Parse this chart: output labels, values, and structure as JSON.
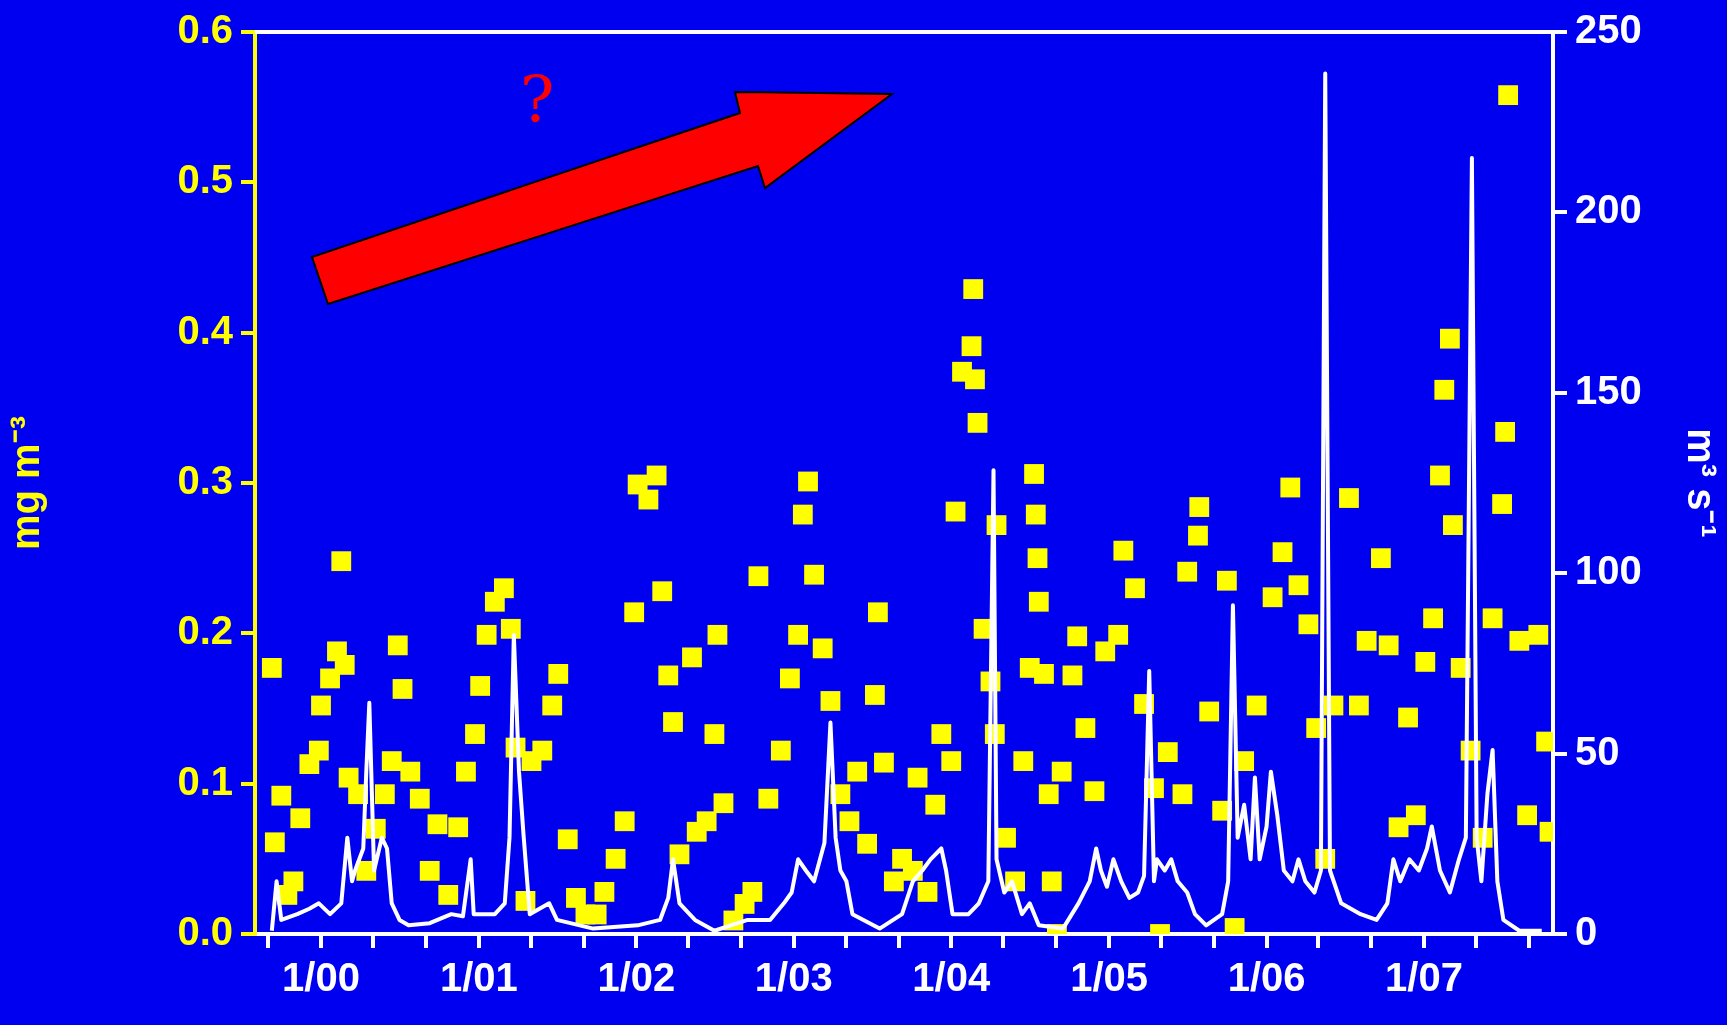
{
  "chart_data": {
    "type": "scatter",
    "ylabel": "mg m⁻³",
    "y2label": "m³ s⁻¹",
    "annotations": [
      "?"
    ],
    "xlim": [
      "1999-08-01",
      "2007-10-27"
    ],
    "xticks": [
      {
        "value": "1999-09",
        "label": null
      },
      {
        "value": "2000-01",
        "label": "1/00"
      },
      {
        "value": "2000-05",
        "label": null
      },
      {
        "value": "2000-09",
        "label": null
      },
      {
        "value": "2001-01",
        "label": "1/01"
      },
      {
        "value": "2001-05",
        "label": null
      },
      {
        "value": "2001-09",
        "label": null
      },
      {
        "value": "2002-01",
        "label": "1/02"
      },
      {
        "value": "2002-05",
        "label": null
      },
      {
        "value": "2002-09",
        "label": null
      },
      {
        "value": "2003-01",
        "label": "1/03"
      },
      {
        "value": "2003-05",
        "label": null
      },
      {
        "value": "2003-09",
        "label": null
      },
      {
        "value": "2004-01",
        "label": "1/04"
      },
      {
        "value": "2004-05",
        "label": null
      },
      {
        "value": "2004-09",
        "label": null
      },
      {
        "value": "2005-01",
        "label": "1/05"
      },
      {
        "value": "2005-05",
        "label": null
      },
      {
        "value": "2005-09",
        "label": null
      },
      {
        "value": "2006-01",
        "label": "1/06"
      },
      {
        "value": "2006-05",
        "label": null
      },
      {
        "value": "2006-09",
        "label": null
      },
      {
        "value": "2007-01",
        "label": "1/07"
      },
      {
        "value": "2007-05",
        "label": null
      },
      {
        "value": "2007-09",
        "label": null
      }
    ],
    "ylim": [
      0,
      0.6
    ],
    "yticks": [
      {
        "value": 0,
        "label": "0.0"
      },
      0.1,
      0.2,
      0.3,
      0.4,
      0.5,
      0.6
    ],
    "y2lim": [
      0,
      250
    ],
    "y2ticks": [
      0,
      50,
      100,
      150,
      200,
      250
    ],
    "series": [
      {
        "color": "#ffff00",
        "marker": "square",
        "x": [
          "1999-09-09",
          "1999-09-16",
          "1999-10-01",
          "1999-10-15",
          "1999-10-29",
          "1999-11-14",
          "1999-12-05",
          "1999-12-27",
          "2000-01-01",
          "2000-01-22",
          "2000-02-07",
          "2000-02-17",
          "2000-02-25",
          "2000-03-05",
          "2000-03-27",
          "2000-04-15",
          "2000-05-07",
          "2000-05-28",
          "2000-06-13",
          "2000-06-27",
          "2000-07-08",
          "2000-07-26",
          "2000-08-17",
          "2000-09-09",
          "2000-09-27",
          "2000-10-22",
          "2000-11-14",
          "2000-12-02",
          "2000-12-23",
          "2001-01-04",
          "2001-01-19",
          "2001-02-07",
          "2001-02-28",
          "2001-03-16",
          "2001-03-27",
          "2001-04-19",
          "2001-05-03",
          "2001-05-28",
          "2001-06-20",
          "2001-07-04",
          "2001-07-26",
          "2001-08-14",
          "2001-09-05",
          "2001-10-01",
          "2001-10-19",
          "2001-11-14",
          "2001-12-05",
          "2001-12-27",
          "2002-01-04",
          "2002-01-29",
          "2002-02-17",
          "2002-03-02",
          "2002-03-16",
          "2002-03-27",
          "2002-04-11",
          "2002-05-10",
          "2002-05-21",
          "2002-06-13",
          "2002-07-01",
          "2002-07-08",
          "2002-07-22",
          "2002-08-14",
          "2002-09-09",
          "2002-09-27",
          "2002-10-11",
          "2002-11-03",
          "2002-12-02",
          "2002-12-23",
          "2003-01-11",
          "2003-01-22",
          "2003-02-03",
          "2003-02-17",
          "2003-03-09",
          "2003-03-27",
          "2003-04-19",
          "2003-05-10",
          "2003-05-28",
          "2003-06-20",
          "2003-07-08",
          "2003-07-15",
          "2003-07-29",
          "2003-08-21",
          "2003-09-09",
          "2003-10-04",
          "2003-10-15",
          "2003-11-07",
          "2003-11-25",
          "2003-12-09",
          "2004-01-01",
          "2004-01-11",
          "2004-01-26",
          "2004-02-17",
          "2004-02-25",
          "2004-03-02",
          "2004-02-21",
          "2004-03-16",
          "2004-04-01",
          "2004-04-11",
          "2004-04-15",
          "2004-05-07",
          "2004-05-28",
          "2004-06-16",
          "2004-07-01",
          "2004-07-11",
          "2004-07-15",
          "2004-07-19",
          "2004-07-22",
          "2004-08-03",
          "2004-08-14",
          "2004-08-21",
          "2004-09-02",
          "2004-09-13",
          "2004-10-08",
          "2004-10-19",
          "2004-11-07",
          "2004-11-28",
          "2004-12-23",
          "2005-01-22",
          "2005-02-03",
          "2005-03-02",
          "2005-03-23",
          "2005-04-15",
          "2005-04-29",
          "2005-05-17",
          "2005-06-20",
          "2005-07-01",
          "2005-07-26",
          "2005-07-29",
          "2005-08-21",
          "2005-09-20",
          "2005-10-01",
          "2005-10-19",
          "2005-11-10",
          "2005-12-09",
          "2006-01-15",
          "2006-02-07",
          "2006-02-25",
          "2006-03-16",
          "2006-04-08",
          "2006-04-26",
          "2006-05-17",
          "2006-06-05",
          "2006-07-11",
          "2006-08-03",
          "2006-08-21",
          "2006-09-23",
          "2006-10-11",
          "2006-11-03",
          "2006-11-25",
          "2006-12-13",
          "2007-01-04",
          "2007-01-22",
          "2007-02-07",
          "2007-02-17",
          "2007-03-02",
          "2007-03-09",
          "2007-03-27",
          "2007-04-19",
          "2007-05-17",
          "2007-06-09",
          "2007-07-01",
          "2007-07-08",
          "2007-07-15",
          "2007-08-10",
          "2007-08-28",
          "2007-09-23",
          "2007-10-11",
          "2007-10-19"
        ],
        "values": [
          0.177,
          0.061,
          0.092,
          0.026,
          0.035,
          0.077,
          0.113,
          0.122,
          0.152,
          0.17,
          0.188,
          0.248,
          0.179,
          0.104,
          0.093,
          0.042,
          0.07,
          0.093,
          0.115,
          0.192,
          0.163,
          0.108,
          0.09,
          0.042,
          0.073,
          0.026,
          0.071,
          0.108,
          0.133,
          0.165,
          0.199,
          0.221,
          0.23,
          0.203,
          0.124,
          0.022,
          0.115,
          0.122,
          0.152,
          0.173,
          0.063,
          0.024,
          0.013,
          0.013,
          0.028,
          0.05,
          0.075,
          0.214,
          0.299,
          0.289,
          0.305,
          0.228,
          0.172,
          0.141,
          0.053,
          0.184,
          0.068,
          0.075,
          0.133,
          0.199,
          0.087,
          0.009,
          0.02,
          0.028,
          0.238,
          0.09,
          0.122,
          0.17,
          0.199,
          0.279,
          0.301,
          0.239,
          0.19,
          0.155,
          0.093,
          0.075,
          0.108,
          0.06,
          0.159,
          0.214,
          0.114,
          0.035,
          0.05,
          0.042,
          0.104,
          0.028,
          0.086,
          0.133,
          0.115,
          0.281,
          0.374,
          0.391,
          0.369,
          0.34,
          0.429,
          0.203,
          0.168,
          0.133,
          0.272,
          0.064,
          0.035,
          0.115,
          0.177,
          0.306,
          0.279,
          0.25,
          0.221,
          0.173,
          0.093,
          0.035,
          0.0,
          0.108,
          0.172,
          0.198,
          0.137,
          0.095,
          0.188,
          0.199,
          0.255,
          0.23,
          0.153,
          0.097,
          0.0,
          0.121,
          0.093,
          0.241,
          0.265,
          0.284,
          0.148,
          0.082,
          0.235,
          0.004,
          0.115,
          0.152,
          0.224,
          0.254,
          0.297,
          0.232,
          0.206,
          0.137,
          0.05,
          0.152,
          0.29,
          0.152,
          0.195,
          0.25,
          0.192,
          0.071,
          0.144,
          0.079,
          0.181,
          0.21,
          0.305,
          0.362,
          0.396,
          0.272,
          0.177,
          0.122,
          0.064,
          0.21,
          0.286,
          0.334,
          0.558,
          0.195,
          0.079,
          0.199,
          0.128,
          0.068
        ]
      },
      {
        "type": "line",
        "axis": "y2",
        "color": "#ffffff",
        "marker": "none",
        "x": [
          "1999-09-09",
          "1999-09-20",
          "1999-10-01",
          "1999-11-07",
          "1999-12-05",
          "1999-12-27",
          "2000-01-22",
          "2000-02-17",
          "2000-03-02",
          "2000-03-13",
          "2000-03-20",
          "2000-04-08",
          "2000-04-15",
          "2000-04-22",
          "2000-05-03",
          "2000-05-21",
          "2000-06-02",
          "2000-06-13",
          "2000-07-01",
          "2000-07-22",
          "2000-09-09",
          "2000-10-29",
          "2000-11-25",
          "2000-12-13",
          "2000-12-20",
          "2001-02-07",
          "2001-03-02",
          "2001-03-13",
          "2001-03-23",
          "2001-04-04",
          "2001-04-15",
          "2001-04-29",
          "2001-06-13",
          "2001-07-01",
          "2001-09-23",
          "2002-01-04",
          "2002-02-25",
          "2002-03-16",
          "2002-03-27",
          "2002-04-11",
          "2002-05-17",
          "2002-07-01",
          "2002-09-16",
          "2002-11-07",
          "2002-12-09",
          "2002-12-27",
          "2003-01-11",
          "2003-01-29",
          "2003-02-17",
          "2003-03-13",
          "2003-03-27",
          "2003-04-08",
          "2003-04-19",
          "2003-05-03",
          "2003-05-17",
          "2003-07-19",
          "2003-09-09",
          "2003-10-04",
          "2003-10-26",
          "2003-11-14",
          "2003-12-09",
          "2003-12-20",
          "2004-01-04",
          "2004-02-10",
          "2004-03-05",
          "2004-03-27",
          "2004-04-08",
          "2004-04-15",
          "2004-05-03",
          "2004-05-21",
          "2004-06-13",
          "2004-07-01",
          "2004-07-22",
          "2004-09-16",
          "2004-10-22",
          "2004-11-17",
          "2004-12-02",
          "2004-12-13",
          "2004-12-27",
          "2005-01-11",
          "2005-01-29",
          "2005-02-17",
          "2005-03-09",
          "2005-03-23",
          "2005-04-04",
          "2005-04-15",
          "2005-04-22",
          "2005-05-10",
          "2005-05-25",
          "2005-06-09",
          "2005-07-01",
          "2005-07-19",
          "2005-08-14",
          "2005-09-20",
          "2005-10-04",
          "2005-10-15",
          "2005-10-26",
          "2005-11-10",
          "2005-11-25",
          "2005-12-05",
          "2005-12-16",
          "2006-01-01",
          "2006-01-11",
          "2006-01-26",
          "2006-02-10",
          "2006-03-02",
          "2006-03-16",
          "2006-04-01",
          "2006-04-22",
          "2006-05-07",
          "2006-05-17",
          "2006-05-28",
          "2006-06-23",
          "2006-08-07",
          "2006-09-13",
          "2006-10-08",
          "2006-10-22",
          "2006-11-07",
          "2006-11-28",
          "2006-12-20",
          "2007-01-08",
          "2007-01-19",
          "2007-02-07",
          "2007-03-02",
          "2007-03-23",
          "2007-04-08",
          "2007-04-22",
          "2007-05-03",
          "2007-05-14",
          "2007-05-28",
          "2007-06-09",
          "2007-06-20",
          "2007-07-04",
          "2007-08-10",
          "2007-10-01"
        ],
        "values": [
          0.9,
          14.6,
          3.9,
          5.5,
          7.0,
          8.5,
          5.5,
          8.5,
          26.7,
          14.6,
          17.6,
          23.7,
          45.0,
          64.1,
          17.6,
          26.7,
          23.7,
          8.5,
          3.9,
          2.4,
          3.0,
          5.5,
          4.9,
          20.7,
          5.5,
          5.5,
          8.5,
          26.7,
          82.9,
          45.0,
          26.7,
          5.5,
          8.5,
          3.9,
          1.5,
          2.4,
          3.9,
          10.0,
          20.7,
          8.5,
          3.9,
          0.9,
          3.9,
          3.9,
          8.5,
          11.5,
          20.7,
          17.6,
          14.6,
          25.2,
          58.6,
          26.7,
          17.6,
          14.6,
          5.5,
          1.5,
          5.5,
          14.6,
          17.6,
          20.7,
          23.7,
          17.6,
          5.5,
          5.5,
          8.5,
          14.6,
          128.5,
          20.7,
          11.5,
          14.6,
          5.5,
          8.5,
          2.4,
          1.5,
          8.5,
          14.6,
          23.7,
          17.6,
          13.1,
          20.7,
          14.6,
          10.0,
          11.5,
          16.1,
          72.9,
          14.6,
          20.7,
          17.6,
          20.7,
          14.6,
          11.5,
          5.5,
          2.4,
          5.5,
          14.6,
          91.1,
          26.7,
          35.8,
          20.7,
          43.4,
          20.7,
          29.8,
          45.0,
          32.8,
          17.6,
          14.6,
          20.7,
          14.6,
          11.5,
          17.6,
          238.5,
          17.6,
          8.5,
          5.5,
          3.9,
          8.5,
          20.7,
          14.6,
          20.7,
          17.6,
          23.7,
          29.8,
          17.6,
          11.5,
          20.7,
          26.7,
          215.1,
          26.7,
          14.6,
          38.9,
          51.0,
          14.6,
          3.9,
          0.9,
          0.9
        ]
      }
    ]
  }
}
